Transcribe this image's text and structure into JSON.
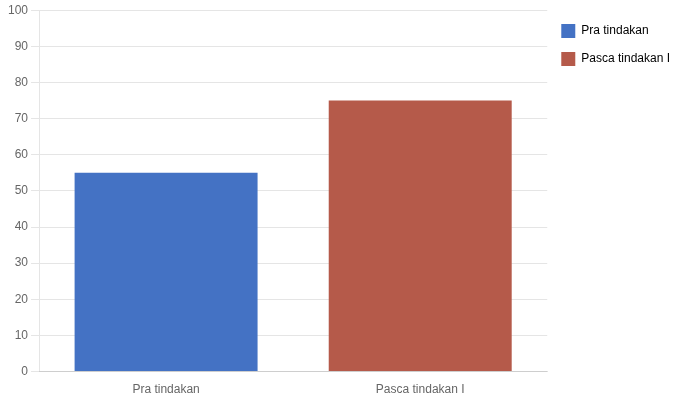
{
  "chart_data": {
    "type": "bar",
    "categories": [
      "Pra tindakan",
      "Pasca tindakan I"
    ],
    "values": [
      55,
      75
    ],
    "colors": [
      "#4472C4",
      "#B55A4A"
    ],
    "ylim": [
      0,
      100
    ],
    "yticks": [
      0,
      10,
      20,
      30,
      40,
      50,
      60,
      70,
      80,
      90,
      100
    ],
    "grid": true,
    "legend": "right"
  }
}
